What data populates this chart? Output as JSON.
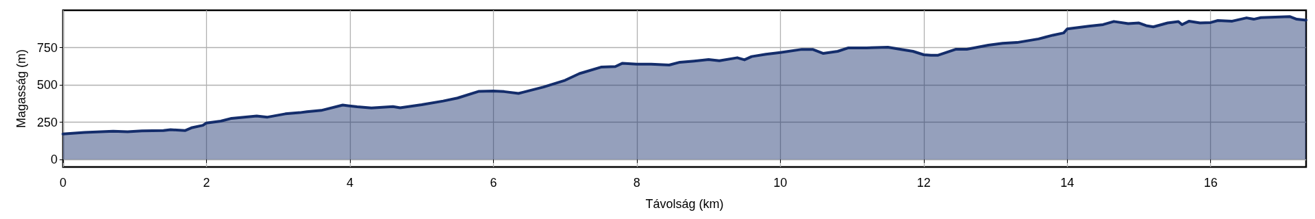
{
  "chart_data": {
    "type": "area",
    "xlabel": "Távolság (km)",
    "ylabel": "Magasság (m)",
    "x": [
      0,
      0.3,
      0.7,
      0.9,
      1.1,
      1.4,
      1.5,
      1.7,
      1.8,
      1.95,
      2.0,
      2.2,
      2.35,
      2.7,
      2.85,
      3.1,
      3.3,
      3.4,
      3.6,
      3.9,
      4.1,
      4.3,
      4.6,
      4.7,
      5.0,
      5.3,
      5.5,
      5.8,
      6.0,
      6.15,
      6.35,
      6.7,
      7.0,
      7.2,
      7.5,
      7.7,
      7.8,
      8.0,
      8.2,
      8.45,
      8.6,
      8.8,
      9.0,
      9.15,
      9.4,
      9.5,
      9.6,
      9.8,
      10.0,
      10.3,
      10.45,
      10.6,
      10.8,
      10.95,
      11.2,
      11.5,
      11.7,
      11.85,
      12.0,
      12.1,
      12.2,
      12.45,
      12.6,
      12.9,
      13.1,
      13.3,
      13.6,
      13.8,
      13.95,
      14.0,
      14.3,
      14.5,
      14.65,
      14.85,
      15.0,
      15.1,
      15.2,
      15.4,
      15.55,
      15.6,
      15.7,
      15.85,
      16.0,
      16.1,
      16.3,
      16.5,
      16.6,
      16.7,
      16.9,
      17.1,
      17.2,
      17.33
    ],
    "series": [
      {
        "color": "#142d6b",
        "values": [
          171,
          182,
          190,
          186,
          192,
          194,
          200,
          194,
          214,
          229,
          245,
          257,
          276,
          292,
          284,
          306,
          314,
          320,
          329,
          365,
          353,
          345,
          355,
          347,
          367,
          392,
          412,
          457,
          459,
          455,
          443,
          486,
          531,
          576,
          619,
          623,
          645,
          639,
          639,
          633,
          652,
          660,
          670,
          662,
          682,
          668,
          690,
          705,
          717,
          738,
          738,
          711,
          725,
          748,
          748,
          752,
          736,
          725,
          702,
          698,
          699,
          739,
          739,
          766,
          779,
          784,
          808,
          833,
          848,
          875,
          893,
          904,
          925,
          911,
          915,
          897,
          889,
          915,
          924,
          904,
          927,
          915,
          918,
          931,
          927,
          949,
          940,
          951,
          954,
          958,
          940,
          934
        ]
      }
    ],
    "xlim": [
      0,
      17.33
    ],
    "xticks": [
      0,
      2,
      4,
      6,
      8,
      10,
      12,
      14,
      16
    ],
    "ylim": [
      -50,
      1000
    ],
    "yticks": [
      0,
      250,
      500,
      750
    ],
    "grid": true,
    "marker": "none",
    "line_style": "solid"
  }
}
